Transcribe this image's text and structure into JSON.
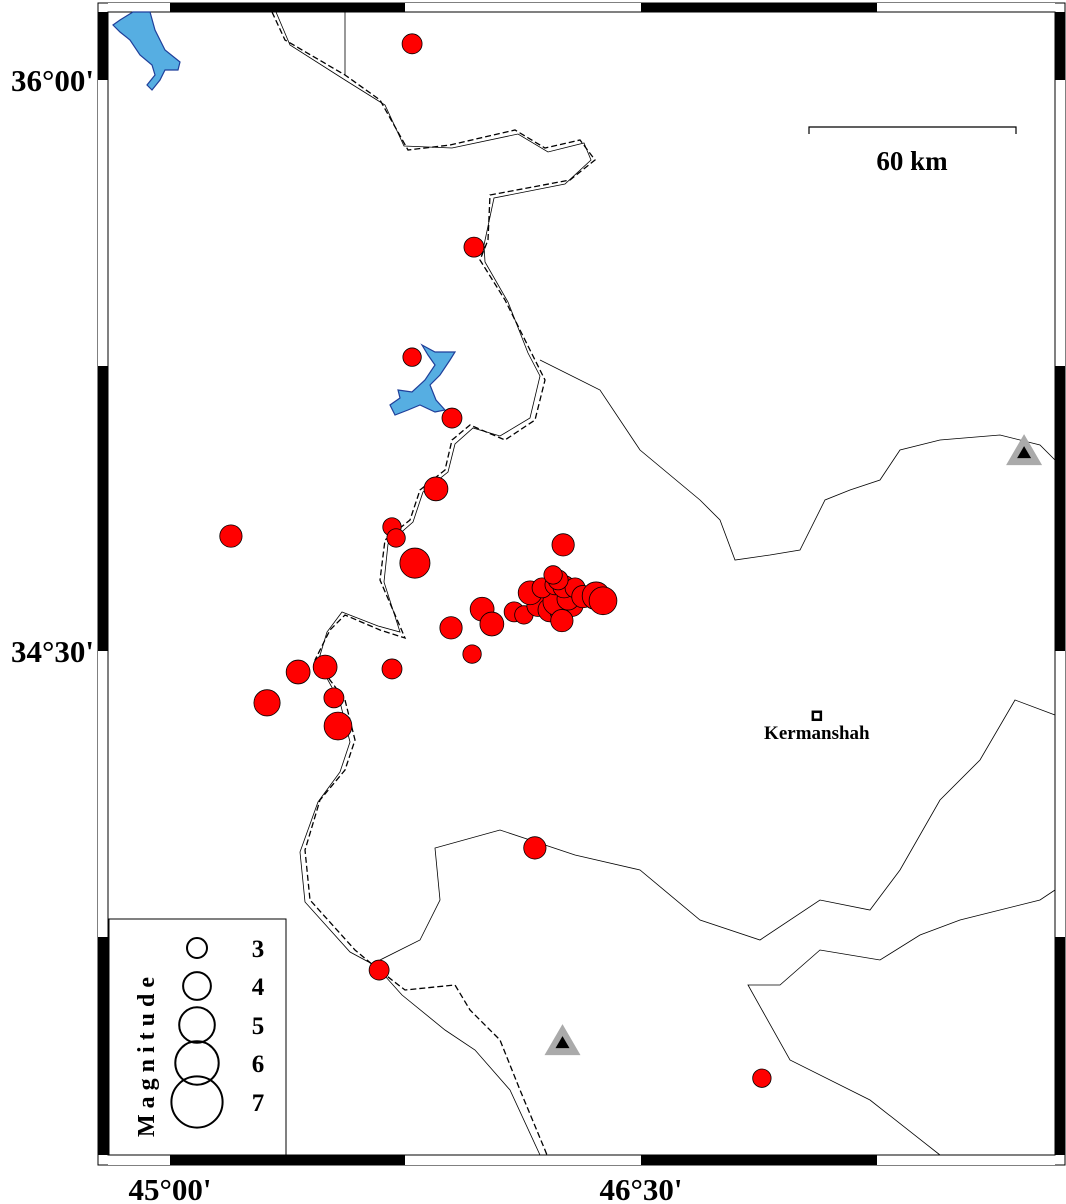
{
  "map": {
    "extent": {
      "lon_min": 44.795,
      "lon_max": 47.812,
      "lat_min": 33.358,
      "lat_max": 36.179
    },
    "lon_ticks": [
      {
        "value": 45.0,
        "label": "45°00'"
      },
      {
        "value": 46.5,
        "label": "46°30'"
      }
    ],
    "lat_ticks": [
      {
        "value": 36.0,
        "label": "36°00'"
      },
      {
        "value": 34.5,
        "label": "34°30'"
      }
    ],
    "scale_bar": {
      "label": "60 km",
      "length_km": 60
    },
    "colors": {
      "event": "#ff0000",
      "lake": "#56aee2",
      "lake_outline": "#1f3f9a",
      "station_outer": "#aaaaaa",
      "station_inner": "#000000"
    },
    "city": {
      "name": "Kermanshah",
      "lon": 47.06,
      "lat": 34.33
    },
    "stations": [
      {
        "lon": 47.72,
        "lat": 35.02
      },
      {
        "lon": 46.25,
        "lat": 33.47
      }
    ],
    "legend": {
      "title": "Magnitude",
      "magnitudes": [
        "3",
        "4",
        "5",
        "6",
        "7"
      ]
    },
    "events": [
      {
        "lon": 45.771,
        "lat": 36.095,
        "mag": 3.0
      },
      {
        "lon": 45.968,
        "lat": 35.561,
        "mag": 3.0
      },
      {
        "lon": 45.771,
        "lat": 35.272,
        "mag": 2.8
      },
      {
        "lon": 45.898,
        "lat": 35.112,
        "mag": 3.0
      },
      {
        "lon": 45.847,
        "lat": 34.926,
        "mag": 3.5
      },
      {
        "lon": 45.194,
        "lat": 34.802,
        "mag": 3.3
      },
      {
        "lon": 45.707,
        "lat": 34.826,
        "mag": 2.8
      },
      {
        "lon": 45.72,
        "lat": 34.797,
        "mag": 2.8
      },
      {
        "lon": 45.78,
        "lat": 34.731,
        "mag": 4.3
      },
      {
        "lon": 46.252,
        "lat": 34.779,
        "mag": 3.3
      },
      {
        "lon": 45.994,
        "lat": 34.61,
        "mag": 3.5
      },
      {
        "lon": 45.895,
        "lat": 34.561,
        "mag": 3.3
      },
      {
        "lon": 46.025,
        "lat": 34.571,
        "mag": 3.5
      },
      {
        "lon": 46.096,
        "lat": 34.603,
        "mag": 3.0
      },
      {
        "lon": 46.127,
        "lat": 34.595,
        "mag": 2.8
      },
      {
        "lon": 45.962,
        "lat": 34.492,
        "mag": 2.8
      },
      {
        "lon": 45.408,
        "lat": 34.445,
        "mag": 3.5
      },
      {
        "lon": 45.494,
        "lat": 34.458,
        "mag": 3.5
      },
      {
        "lon": 45.707,
        "lat": 34.453,
        "mag": 3.0
      },
      {
        "lon": 45.309,
        "lat": 34.364,
        "mag": 3.8
      },
      {
        "lon": 45.522,
        "lat": 34.377,
        "mag": 3.0
      },
      {
        "lon": 45.535,
        "lat": 34.303,
        "mag": 4.0
      },
      {
        "lon": 46.162,
        "lat": 33.983,
        "mag": 3.3
      },
      {
        "lon": 45.666,
        "lat": 33.662,
        "mag": 3.0
      },
      {
        "lon": 46.885,
        "lat": 33.378,
        "mag": 2.8
      },
      {
        "lon": 46.22,
        "lat": 34.649,
        "mag": 3.5
      },
      {
        "lon": 46.185,
        "lat": 34.64,
        "mag": 3.5
      },
      {
        "lon": 46.172,
        "lat": 34.62,
        "mag": 3.3
      },
      {
        "lon": 46.21,
        "lat": 34.608,
        "mag": 3.5
      },
      {
        "lon": 46.248,
        "lat": 34.605,
        "mag": 3.5
      },
      {
        "lon": 46.28,
        "lat": 34.62,
        "mag": 3.3
      },
      {
        "lon": 46.232,
        "lat": 34.63,
        "mag": 4.0
      },
      {
        "lon": 46.268,
        "lat": 34.637,
        "mag": 3.3
      },
      {
        "lon": 46.147,
        "lat": 34.653,
        "mag": 3.5
      },
      {
        "lon": 46.185,
        "lat": 34.666,
        "mag": 3.0
      },
      {
        "lon": 46.226,
        "lat": 34.674,
        "mag": 3.0
      },
      {
        "lon": 46.255,
        "lat": 34.669,
        "mag": 3.3
      },
      {
        "lon": 46.29,
        "lat": 34.666,
        "mag": 3.0
      },
      {
        "lon": 46.315,
        "lat": 34.643,
        "mag": 3.3
      },
      {
        "lon": 46.236,
        "lat": 34.687,
        "mag": 3.0
      },
      {
        "lon": 46.22,
        "lat": 34.7,
        "mag": 2.8
      },
      {
        "lon": 46.248,
        "lat": 34.58,
        "mag": 3.3
      },
      {
        "lon": 46.357,
        "lat": 34.645,
        "mag": 4.0
      },
      {
        "lon": 46.379,
        "lat": 34.632,
        "mag": 4.0
      }
    ]
  }
}
